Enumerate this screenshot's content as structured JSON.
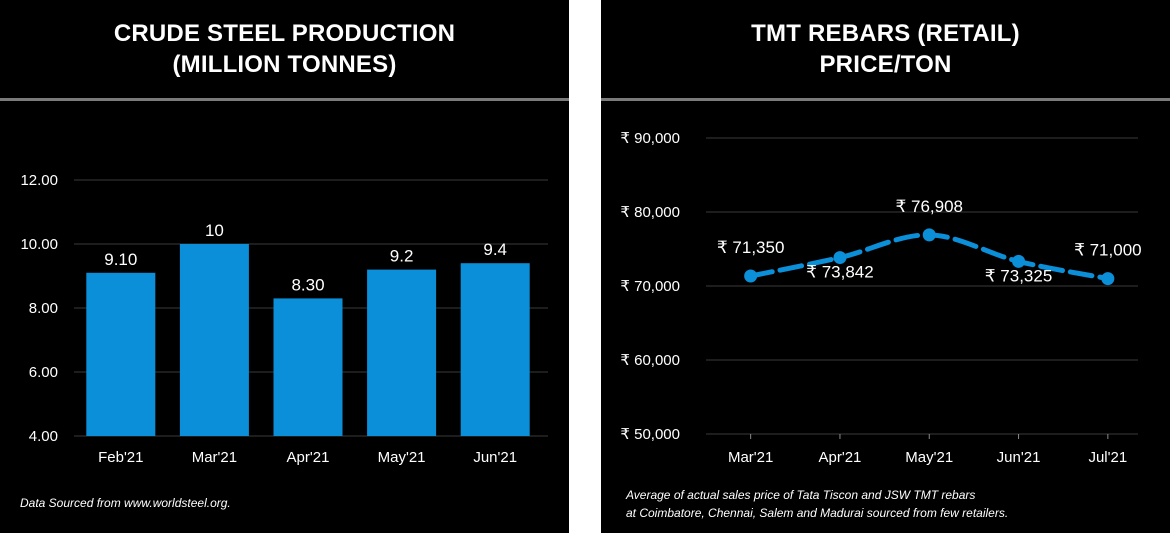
{
  "left_panel": {
    "title_line1": "CRUDE STEEL PRODUCTION",
    "title_line2": "(MILLION TONNES)",
    "footnote": "Data Sourced from www.worldsteel.org."
  },
  "right_panel": {
    "title_line1": "TMT REBARS (RETAIL)",
    "title_line2": "PRICE/TON",
    "footnote_line1": "Average of actual sales price of Tata Tiscon and JSW TMT rebars",
    "footnote_line2": "at Coimbatore, Chennai, Salem and Madurai sourced from few retailers."
  },
  "colors": {
    "background": "#000000",
    "bar": "#0a8fd8",
    "line": "#0a8fd8",
    "grid": "#3a3a3a",
    "rule": "#7a7a7a",
    "text": "#ffffff"
  },
  "chart_data": [
    {
      "type": "bar",
      "title": "CRUDE STEEL PRODUCTION (MILLION TONNES)",
      "categories": [
        "Feb'21",
        "Mar'21",
        "Apr'21",
        "May'21",
        "Jun'21"
      ],
      "values": [
        9.1,
        10,
        8.3,
        9.2,
        9.4
      ],
      "data_labels": [
        "9.10",
        "10",
        "8.30",
        "9.2",
        "9.4"
      ],
      "ylim": [
        4,
        12
      ],
      "yticks": [
        4,
        6,
        8,
        10,
        12
      ],
      "ytick_labels": [
        "4.00",
        "6.00",
        "8.00",
        "10.00",
        "12.00"
      ],
      "grid": true
    },
    {
      "type": "line",
      "title": "TMT REBARS (RETAIL) PRICE/TON",
      "categories": [
        "Mar'21",
        "Apr'21",
        "May'21",
        "Jun'21",
        "Jul'21"
      ],
      "values": [
        71350,
        73842,
        76908,
        73325,
        71000
      ],
      "data_labels": [
        "₹ 71,350",
        "₹ 73,842",
        "₹ 76,908",
        "₹ 73,325",
        "₹ 71,000"
      ],
      "data_label_positions": [
        "above",
        "below",
        "above",
        "below",
        "above"
      ],
      "ylim": [
        50000,
        90000
      ],
      "yticks": [
        50000,
        60000,
        70000,
        80000,
        90000
      ],
      "ytick_labels": [
        "₹ 50,000",
        "₹ 60,000",
        "₹ 70,000",
        "₹ 80,000",
        "₹ 90,000"
      ],
      "smooth": true,
      "grid": true
    }
  ]
}
